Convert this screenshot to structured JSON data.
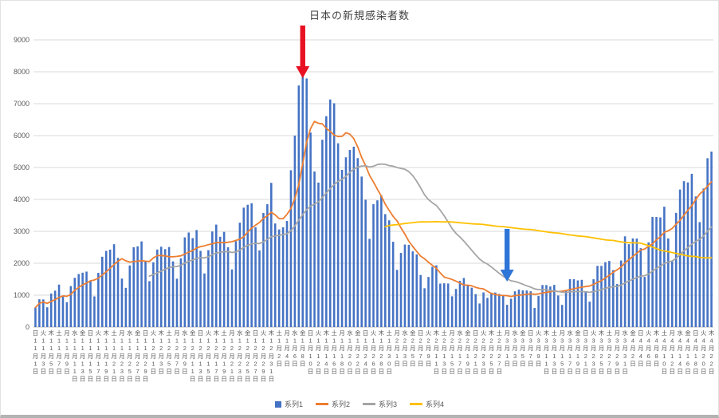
{
  "window": {
    "background": "#ffffff",
    "bottom_edge_color": "#b3b3b3"
  },
  "chart_data": {
    "type": "bar",
    "title": "日本の新規感染者数",
    "xlabel": "",
    "ylabel": "",
    "ylim": [
      0,
      9000
    ],
    "y_tick_interval": 1000,
    "y_tick_labels": [
      "0",
      "1000",
      "2000",
      "3000",
      "4000",
      "5000",
      "6000",
      "7000",
      "8000",
      "9000"
    ],
    "grid": true,
    "legend_position": "bottom",
    "x_start_date": "2020-11-01",
    "x_end_date": "2021-04-22",
    "series": [
      {
        "name": "系列1",
        "type": "bar",
        "color": "#4472c4",
        "values": [
          614,
          871,
          867,
          620,
          1050,
          1141,
          1331,
          957,
          780,
          1284,
          1543,
          1661,
          1704,
          1738,
          1441,
          962,
          1699,
          2203,
          2386,
          2427,
          2596,
          2168,
          1521,
          1229,
          1931,
          2501,
          2531,
          2684,
          2066,
          1438,
          2030,
          2430,
          2518,
          2442,
          2508,
          2058,
          1516,
          2152,
          2811,
          2962,
          2788,
          3041,
          2388,
          1680,
          2410,
          2994,
          3211,
          2829,
          2982,
          2501,
          1806,
          2688,
          3271,
          3742,
          3832,
          3881,
          3127,
          2403,
          3576,
          3852,
          4520,
          3246,
          3059,
          3127,
          3325,
          4915,
          6001,
          7571,
          7844,
          7790,
          6097,
          4876,
          4527,
          5870,
          6609,
          7133,
          7014,
          5759,
          4925,
          5320,
          5549,
          5653,
          5293,
          4717,
          3988,
          2764,
          3853,
          3971,
          4133,
          3539,
          3344,
          2673,
          1792,
          2324,
          2585,
          2577,
          2372,
          2277,
          1632,
          1216,
          1570,
          1887,
          1934,
          1362,
          1372,
          1364,
          965,
          1194,
          1448,
          1538,
          1301,
          1234,
          1032,
          739,
          1087,
          915,
          1076,
          1083,
          1038,
          999,
          697,
          888,
          1121,
          1173,
          1148,
          1144,
          1121,
          599,
          974,
          1317,
          1316,
          1271,
          1320,
          988,
          695,
          1133,
          1500,
          1499,
          1463,
          1480,
          1121,
          796,
          1498,
          1918,
          1917,
          2034,
          2072,
          1785,
          1348,
          2087,
          2843,
          2597,
          2778,
          2774,
          2472,
          1571,
          2654,
          3449,
          3450,
          3436,
          3772,
          2777,
          2087,
          3579,
          4309,
          4571,
          4532,
          4802,
          4093,
          3289,
          4342,
          5291,
          5500
        ]
      },
      {
        "name": "系列2",
        "type": "line",
        "color": "#ed7d31",
        "derived": "7-day moving average of 系列1",
        "window": 7,
        "full_window_only": false
      },
      {
        "name": "系列3",
        "type": "line",
        "color": "#a5a5a5",
        "derived": "30-day moving average of 系列1",
        "window": 30,
        "full_window_only": true
      },
      {
        "name": "系列4",
        "type": "line",
        "color": "#ffc000",
        "derived": "90-day moving average of 系列1",
        "window": 90,
        "full_window_only": true
      }
    ],
    "x_ticks": [
      [
        "日",
        "11",
        "1"
      ],
      [
        "火",
        "11",
        "3"
      ],
      [
        "木",
        "11",
        "5"
      ],
      [
        "土",
        "11",
        "7"
      ],
      [
        "月",
        "11",
        "9"
      ],
      [
        "水",
        "11",
        "11"
      ],
      [
        "金",
        "11",
        "13"
      ],
      [
        "日",
        "11",
        "15"
      ],
      [
        "火",
        "11",
        "17"
      ],
      [
        "木",
        "11",
        "19"
      ],
      [
        "土",
        "11",
        "21"
      ],
      [
        "月",
        "11",
        "23"
      ],
      [
        "水",
        "11",
        "25"
      ],
      [
        "金",
        "11",
        "27"
      ],
      [
        "日",
        "11",
        "29"
      ],
      [
        "火",
        "12",
        "1"
      ],
      [
        "木",
        "12",
        "3"
      ],
      [
        "土",
        "12",
        "5"
      ],
      [
        "月",
        "12",
        "7"
      ],
      [
        "水",
        "12",
        "9"
      ],
      [
        "金",
        "12",
        "11"
      ],
      [
        "日",
        "12",
        "13"
      ],
      [
        "火",
        "12",
        "15"
      ],
      [
        "木",
        "12",
        "17"
      ],
      [
        "土",
        "12",
        "19"
      ],
      [
        "月",
        "12",
        "21"
      ],
      [
        "水",
        "12",
        "23"
      ],
      [
        "金",
        "12",
        "25"
      ],
      [
        "日",
        "12",
        "27"
      ],
      [
        "火",
        "12",
        "29"
      ],
      [
        "木",
        "12",
        "31"
      ],
      [
        "土",
        "1",
        "2"
      ],
      [
        "月",
        "1",
        "4"
      ],
      [
        "水",
        "1",
        "6"
      ],
      [
        "金",
        "1",
        "8"
      ],
      [
        "日",
        "1",
        "10"
      ],
      [
        "火",
        "1",
        "12"
      ],
      [
        "木",
        "1",
        "14"
      ],
      [
        "土",
        "1",
        "16"
      ],
      [
        "月",
        "1",
        "18"
      ],
      [
        "水",
        "1",
        "20"
      ],
      [
        "金",
        "1",
        "22"
      ],
      [
        "日",
        "1",
        "24"
      ],
      [
        "火",
        "1",
        "26"
      ],
      [
        "木",
        "1",
        "28"
      ],
      [
        "土",
        "1",
        "30"
      ],
      [
        "月",
        "2",
        "1"
      ],
      [
        "水",
        "2",
        "3"
      ],
      [
        "金",
        "2",
        "5"
      ],
      [
        "日",
        "2",
        "7"
      ],
      [
        "火",
        "2",
        "9"
      ],
      [
        "木",
        "2",
        "11"
      ],
      [
        "土",
        "2",
        "13"
      ],
      [
        "月",
        "2",
        "15"
      ],
      [
        "水",
        "2",
        "17"
      ],
      [
        "金",
        "2",
        "19"
      ],
      [
        "日",
        "2",
        "21"
      ],
      [
        "火",
        "2",
        "23"
      ],
      [
        "木",
        "2",
        "25"
      ],
      [
        "土",
        "2",
        "27"
      ],
      [
        "月",
        "3",
        "1"
      ],
      [
        "水",
        "3",
        "3"
      ],
      [
        "金",
        "3",
        "5"
      ],
      [
        "日",
        "3",
        "7"
      ],
      [
        "火",
        "3",
        "9"
      ],
      [
        "木",
        "3",
        "11"
      ],
      [
        "土",
        "3",
        "13"
      ],
      [
        "月",
        "3",
        "15"
      ],
      [
        "水",
        "3",
        "17"
      ],
      [
        "金",
        "3",
        "19"
      ],
      [
        "日",
        "3",
        "21"
      ],
      [
        "火",
        "3",
        "23"
      ],
      [
        "木",
        "3",
        "25"
      ],
      [
        "土",
        "3",
        "27"
      ],
      [
        "月",
        "3",
        "29"
      ],
      [
        "水",
        "3",
        "31"
      ],
      [
        "金",
        "4",
        "2"
      ],
      [
        "日",
        "4",
        "4"
      ],
      [
        "火",
        "4",
        "6"
      ],
      [
        "木",
        "4",
        "8"
      ],
      [
        "土",
        "4",
        "10"
      ],
      [
        "月",
        "4",
        "12"
      ],
      [
        "水",
        "4",
        "14"
      ],
      [
        "金",
        "4",
        "16"
      ],
      [
        "日",
        "4",
        "18"
      ],
      [
        "火",
        "4",
        "20"
      ],
      [
        "木",
        "4",
        "22"
      ]
    ],
    "annotations": [
      {
        "name": "red-down-arrow",
        "shape": "down-arrow",
        "color": "#e81123",
        "day_index": 68,
        "points_at": "1月8日のピーク",
        "y_from": 31,
        "y_to": 97
      },
      {
        "name": "blue-down-arrow",
        "shape": "down-arrow",
        "color": "#2e75d8",
        "day_index": 120,
        "points_at": "3月1日付近の底",
        "y_from": 286,
        "y_to": 352
      }
    ]
  }
}
